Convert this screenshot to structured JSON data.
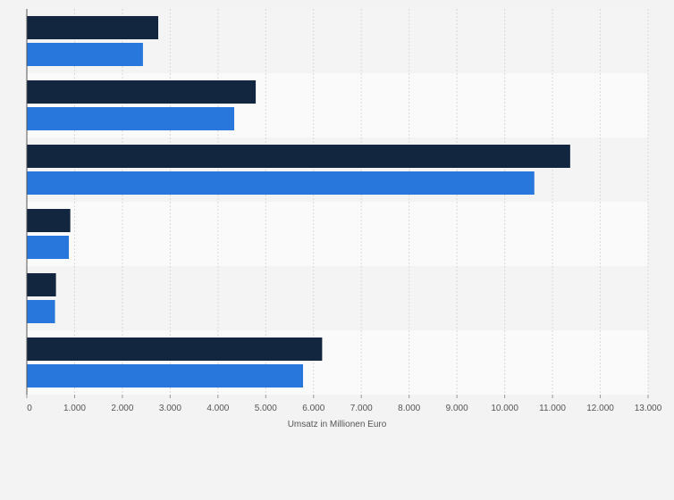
{
  "chart_data": {
    "type": "bar",
    "orientation": "horizontal",
    "title": "",
    "xlabel": "Umsatz in Millionen Euro",
    "ylabel": "",
    "xlim": [
      0,
      13000
    ],
    "x_ticks": [
      0,
      1000,
      2000,
      3000,
      4000,
      5000,
      6000,
      7000,
      8000,
      9000,
      10000,
      11000,
      12000,
      13000
    ],
    "x_tick_labels": [
      "0",
      "1.000",
      "2.000",
      "3.000",
      "4.000",
      "5.000",
      "6.000",
      "7.000",
      "8.000",
      "9.000",
      "10.000",
      "11.000",
      "12.000",
      "13.000"
    ],
    "categories": [
      "",
      "",
      "",
      "",
      "",
      ""
    ],
    "grid": true,
    "series": [
      {
        "name": "",
        "color": "#12263f",
        "values": [
          2750,
          4790,
          11370,
          910,
          610,
          6180
        ]
      },
      {
        "name": "",
        "color": "#2777dd",
        "values": [
          2430,
          4340,
          10620,
          880,
          590,
          5780
        ]
      }
    ],
    "band_colors": [
      "#f4f4f4",
      "#fafafa"
    ],
    "grid_color": "#d9d9d9",
    "axis_color": "#555555",
    "text_color": "#555555"
  }
}
